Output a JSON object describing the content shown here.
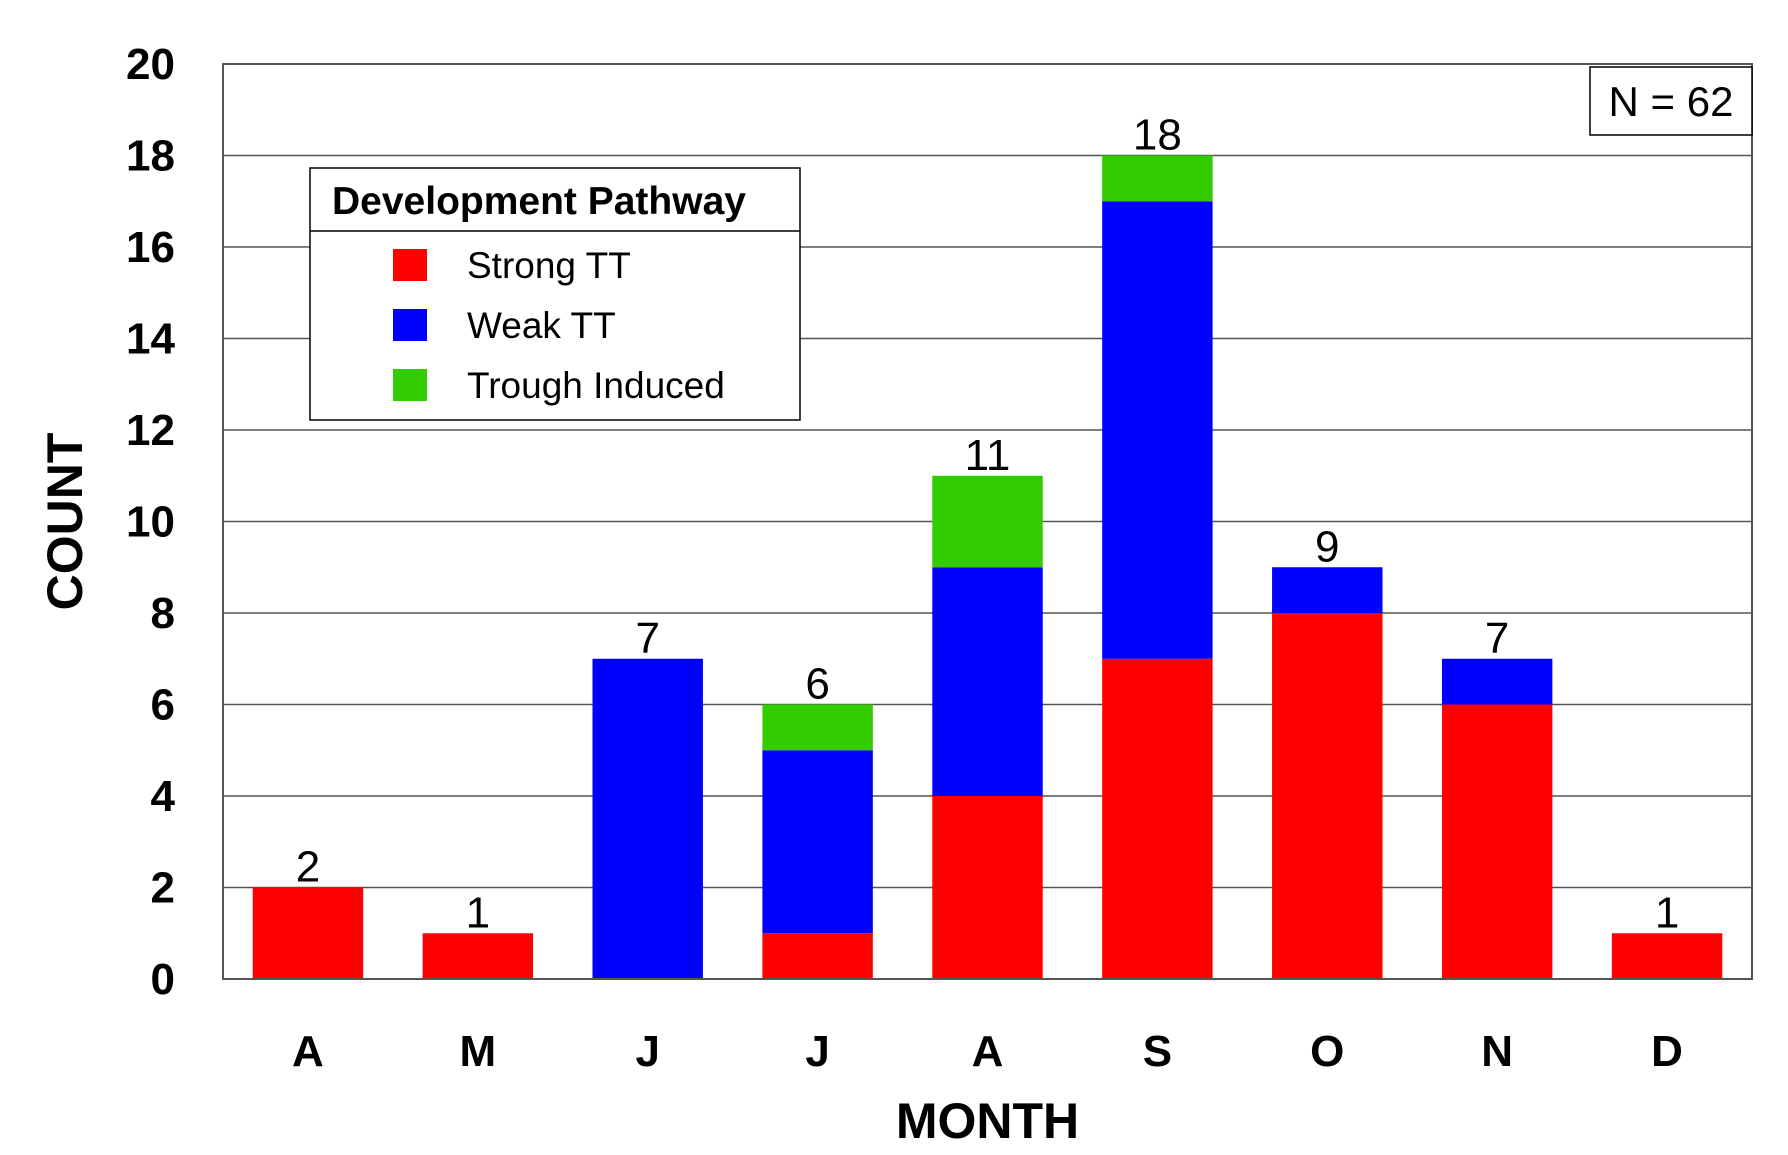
{
  "chart_data": {
    "type": "bar",
    "stacked": true,
    "categories": [
      "A",
      "M",
      "J",
      "J",
      "A",
      "S",
      "O",
      "N",
      "D"
    ],
    "series": [
      {
        "name": "Strong TT",
        "color": "#ff0000",
        "values": [
          2,
          1,
          0,
          1,
          4,
          7,
          8,
          6,
          1
        ]
      },
      {
        "name": "Weak TT",
        "color": "#0000ff",
        "values": [
          0,
          0,
          7,
          4,
          5,
          10,
          1,
          1,
          0
        ]
      },
      {
        "name": "Trough Induced",
        "color": "#33cc00",
        "values": [
          0,
          0,
          0,
          1,
          2,
          1,
          0,
          0,
          0
        ]
      }
    ],
    "totals": [
      2,
      1,
      7,
      6,
      11,
      18,
      9,
      7,
      1
    ],
    "xlabel": "MONTH",
    "ylabel": "COUNT",
    "ylim": [
      0,
      20
    ],
    "yticks": [
      0,
      2,
      4,
      6,
      8,
      10,
      12,
      14,
      16,
      18,
      20
    ],
    "grid": true,
    "legend": {
      "title": "Development Pathway",
      "placement": "top-left"
    },
    "annotation": "N = 62"
  }
}
